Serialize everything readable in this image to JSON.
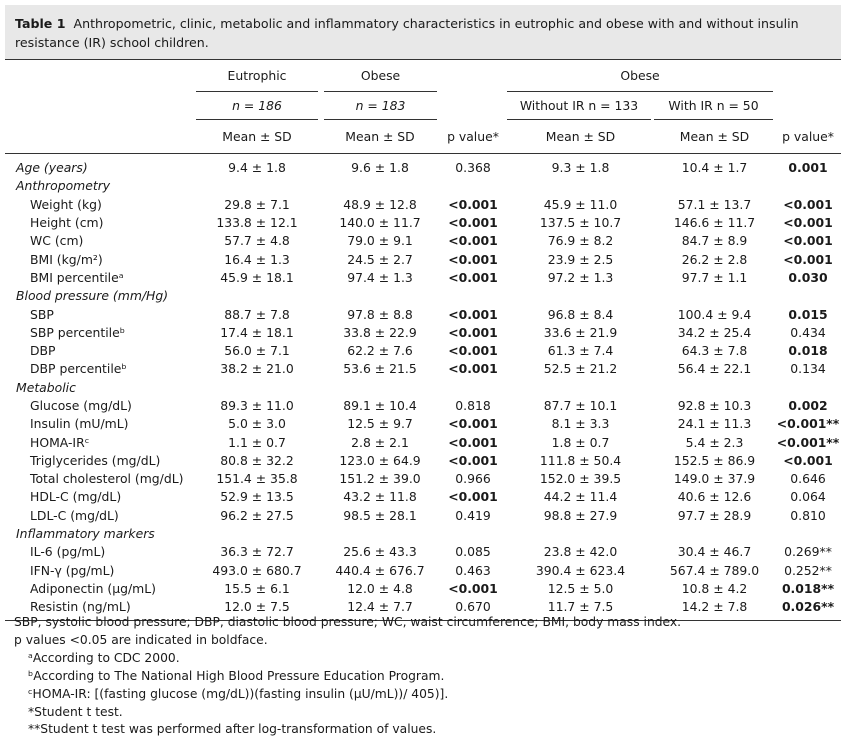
{
  "caption": {
    "label": "Table 1",
    "text": "Anthropometric, clinic, metabolic and inflammatory characteristics in eutrophic and obese with and without insulin resistance (IR) school children."
  },
  "header": {
    "eutrophic": "Eutrophic",
    "obese": "Obese",
    "obese_group": "Obese",
    "n_eutrophic": "n = 186",
    "n_obese": "n = 183",
    "without_ir": "Without IR n = 133",
    "with_ir": "With IR n = 50",
    "mean_sd": "Mean ± SD",
    "p_value": "p value*"
  },
  "rows": [
    {
      "type": "data",
      "style": "sec",
      "label": "Age (years)",
      "v": [
        "9.4 ± 1.8",
        "9.6 ± 1.8",
        "0.368",
        "9.3 ± 1.8",
        "10.4 ± 1.7",
        "0.001"
      ],
      "bold_p1": false,
      "bold_p2": true
    },
    {
      "type": "section",
      "label": "Anthropometry"
    },
    {
      "type": "data",
      "label": "Weight (kg)",
      "v": [
        "29.8 ± 7.1",
        "48.9 ± 12.8",
        "<0.001",
        "45.9 ± 11.0",
        "57.1 ± 13.7",
        "<0.001"
      ],
      "bold_p1": true,
      "bold_p2": true
    },
    {
      "type": "data",
      "label": "Height (cm)",
      "v": [
        "133.8 ± 12.1",
        "140.0 ± 11.7",
        "<0.001",
        "137.5 ± 10.7",
        "146.6 ± 11.7",
        "<0.001"
      ],
      "bold_p1": true,
      "bold_p2": true
    },
    {
      "type": "data",
      "label": "WC (cm)",
      "v": [
        "57.7 ± 4.8",
        "79.0 ± 9.1",
        "<0.001",
        "76.9 ± 8.2",
        "84.7 ± 8.9",
        "<0.001"
      ],
      "bold_p1": true,
      "bold_p2": true
    },
    {
      "type": "data",
      "label": "BMI (kg/m²)",
      "v": [
        "16.4 ± 1.3",
        "24.5 ± 2.7",
        "<0.001",
        "23.9 ± 2.5",
        "26.2 ± 2.8",
        "<0.001"
      ],
      "bold_p1": true,
      "bold_p2": true
    },
    {
      "type": "data",
      "label": "BMI percentileᵃ",
      "v": [
        "45.9 ± 18.1",
        "97.4 ± 1.3",
        "<0.001",
        "97.2 ± 1.3",
        "97.7 ± 1.1",
        "0.030"
      ],
      "bold_p1": true,
      "bold_p2": true
    },
    {
      "type": "section",
      "label": "Blood pressure (mm/Hg)"
    },
    {
      "type": "data",
      "label": "SBP",
      "v": [
        "88.7 ± 7.8",
        "97.8 ± 8.8",
        "<0.001",
        "96.8 ± 8.4",
        "100.4 ± 9.4",
        "0.015"
      ],
      "bold_p1": true,
      "bold_p2": true
    },
    {
      "type": "data",
      "label": "SBP percentileᵇ",
      "v": [
        "17.4 ± 18.1",
        "33.8 ± 22.9",
        "<0.001",
        "33.6 ± 21.9",
        "34.2 ± 25.4",
        "0.434"
      ],
      "bold_p1": true,
      "bold_p2": false
    },
    {
      "type": "data",
      "label": "DBP",
      "v": [
        "56.0 ± 7.1",
        "62.2 ± 7.6",
        "<0.001",
        "61.3 ± 7.4",
        "64.3 ± 7.8",
        "0.018"
      ],
      "bold_p1": true,
      "bold_p2": true
    },
    {
      "type": "data",
      "label": "DBP percentileᵇ",
      "v": [
        "38.2 ± 21.0",
        "53.6 ± 21.5",
        "<0.001",
        "52.5 ± 21.2",
        "56.4 ± 22.1",
        "0.134"
      ],
      "bold_p1": true,
      "bold_p2": false
    },
    {
      "type": "section",
      "label": "Metabolic"
    },
    {
      "type": "data",
      "label": "Glucose (mg/dL)",
      "v": [
        "89.3 ± 11.0",
        "89.1 ± 10.4",
        "0.818",
        "87.7 ± 10.1",
        "92.8 ± 10.3",
        "0.002"
      ],
      "bold_p1": false,
      "bold_p2": true
    },
    {
      "type": "data",
      "label": "Insulin (mU/mL)",
      "v": [
        "5.0 ± 3.0",
        "12.5 ± 9.7",
        "<0.001",
        "8.1 ± 3.3",
        "24.1 ± 11.3",
        "<0.001**"
      ],
      "bold_p1": true,
      "bold_p2": true
    },
    {
      "type": "data",
      "label": "HOMA-IRᶜ",
      "v": [
        "1.1 ± 0.7",
        "2.8 ± 2.1",
        "<0.001",
        "1.8 ± 0.7",
        "5.4 ± 2.3",
        "<0.001**"
      ],
      "bold_p1": true,
      "bold_p2": true
    },
    {
      "type": "data",
      "label": "Triglycerides (mg/dL)",
      "v": [
        "80.8 ± 32.2",
        "123.0 ± 64.9",
        "<0.001",
        "111.8 ± 50.4",
        "152.5 ± 86.9",
        "<0.001"
      ],
      "bold_p1": true,
      "bold_p2": true
    },
    {
      "type": "data",
      "label": "Total cholesterol (mg/dL)",
      "v": [
        "151.4 ± 35.8",
        "151.2 ± 39.0",
        "0.966",
        "152.0 ± 39.5",
        "149.0 ± 37.9",
        "0.646"
      ],
      "bold_p1": false,
      "bold_p2": false
    },
    {
      "type": "data",
      "label": "HDL-C (mg/dL)",
      "v": [
        "52.9 ± 13.5",
        "43.2 ± 11.8",
        "<0.001",
        "44.2 ± 11.4",
        "40.6 ± 12.6",
        "0.064"
      ],
      "bold_p1": true,
      "bold_p2": false
    },
    {
      "type": "data",
      "label": "LDL-C (mg/dL)",
      "v": [
        "96.2 ± 27.5",
        "98.5 ± 28.1",
        "0.419",
        "98.8 ± 27.9",
        "97.7 ± 28.9",
        "0.810"
      ],
      "bold_p1": false,
      "bold_p2": false
    },
    {
      "type": "section",
      "label": "Inflammatory markers"
    },
    {
      "type": "data",
      "label": "IL-6 (pg/mL)",
      "v": [
        "36.3 ± 72.7",
        "25.6 ± 43.3",
        "0.085",
        "23.8 ± 42.0",
        "30.4 ± 46.7",
        "0.269**"
      ],
      "bold_p1": false,
      "bold_p2": false
    },
    {
      "type": "data",
      "label": "IFN-γ (pg/mL)",
      "v": [
        "493.0 ± 680.7",
        "440.4 ± 676.7",
        "0.463",
        "390.4 ± 623.4",
        "567.4 ± 789.0",
        "0.252**"
      ],
      "bold_p1": false,
      "bold_p2": false
    },
    {
      "type": "data",
      "label": "Adiponectin (μg/mL)",
      "v": [
        "15.5 ± 6.1",
        "12.0 ± 4.8",
        "<0.001",
        "12.5 ± 5.0",
        "10.8 ± 4.2",
        "0.018**"
      ],
      "bold_p1": true,
      "bold_p2": true
    },
    {
      "type": "data",
      "label": "Resistin (ng/mL)",
      "v": [
        "12.0 ± 7.5",
        "12.4 ± 7.7",
        "0.670",
        "11.7 ± 7.5",
        "14.2 ± 7.8",
        "0.026**"
      ],
      "bold_p1": false,
      "bold_p2": true
    }
  ],
  "footnotes": [
    {
      "indent": false,
      "text": "SBP, systolic blood pressure; DBP, diastolic blood pressure; WC, waist circumference; BMI, body mass index."
    },
    {
      "indent": false,
      "text": "p values <0.05 are indicated in boldface."
    },
    {
      "indent": true,
      "text": "ᵃAccording to CDC 2000."
    },
    {
      "indent": true,
      "text": "ᵇAccording to The National High Blood Pressure Education Program."
    },
    {
      "indent": true,
      "text": "ᶜHOMA-IR: [(fasting glucose (mg/dL))(fasting insulin (μU/mL))/ 405)]."
    },
    {
      "indent": true,
      "text": "*Student t test."
    },
    {
      "indent": true,
      "text": "**Student t test was performed after log-transformation of values."
    }
  ]
}
